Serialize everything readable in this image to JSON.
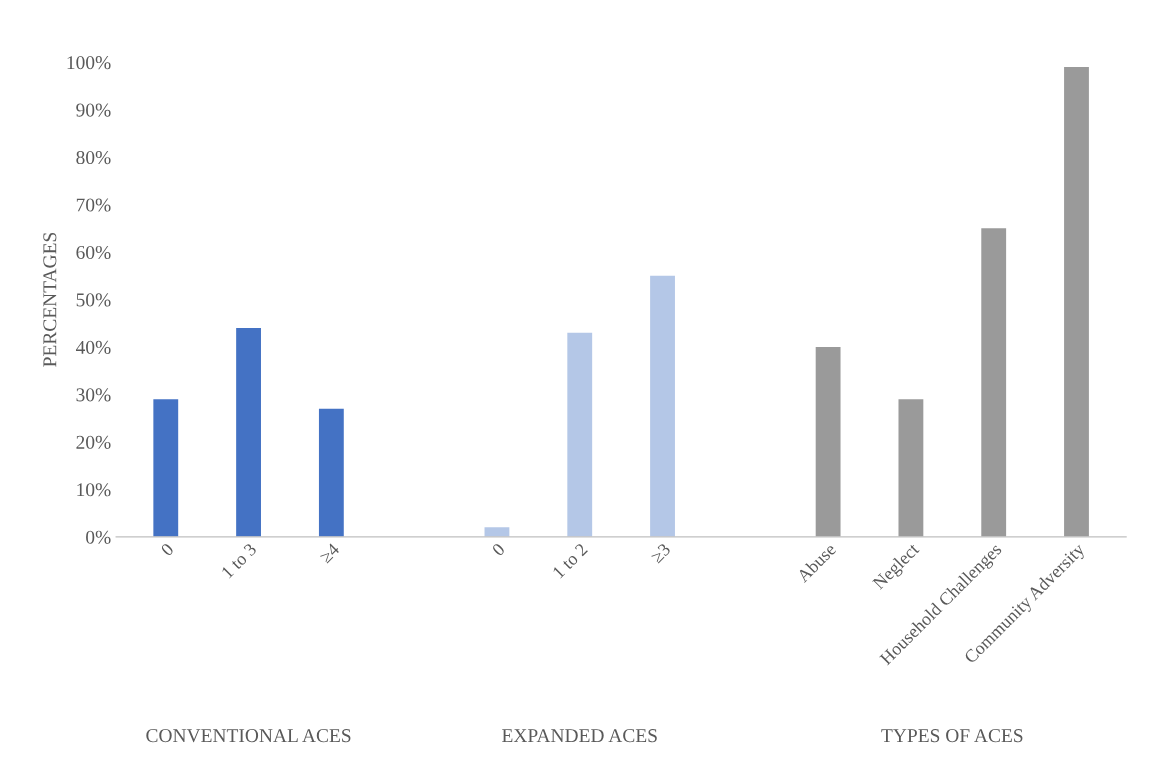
{
  "chart_data": {
    "type": "bar",
    "ylabel": "PERCENTAGES",
    "categories": [
      "0",
      "1 to 3",
      "≥4",
      null,
      "0",
      "1 to 2",
      "≥3",
      null,
      "Abuse",
      "Neglect",
      "Household Challenges",
      "Community Adversity"
    ],
    "series": [
      {
        "color": "#4472c4",
        "values": [
          29,
          44,
          27,
          null,
          null,
          null,
          null,
          null,
          null,
          null,
          null,
          null
        ]
      },
      {
        "color": "#b4c7e7",
        "values": [
          null,
          null,
          null,
          null,
          2,
          43,
          55,
          null,
          null,
          null,
          null,
          null
        ]
      },
      {
        "color": "#9a9a9a",
        "values": [
          null,
          null,
          null,
          null,
          null,
          null,
          null,
          null,
          40,
          29,
          65,
          99
        ]
      }
    ],
    "annotations": [
      "CONVENTIONAL ACES",
      "EXPANDED ACES",
      "TYPES OF ACES"
    ],
    "ylim": [
      0,
      100
    ],
    "yticks": [
      {
        "value": 0,
        "label": "0%"
      },
      {
        "value": 10,
        "label": "10%"
      },
      {
        "value": 20,
        "label": "20%"
      },
      {
        "value": 30,
        "label": "30%"
      },
      {
        "value": 40,
        "label": "40%"
      },
      {
        "value": 50,
        "label": "50%"
      },
      {
        "value": 60,
        "label": "60%"
      },
      {
        "value": 70,
        "label": "70%"
      },
      {
        "value": 80,
        "label": "80%"
      },
      {
        "value": 90,
        "label": "90%"
      },
      {
        "value": 100,
        "label": "100%"
      }
    ],
    "grid": false
  }
}
